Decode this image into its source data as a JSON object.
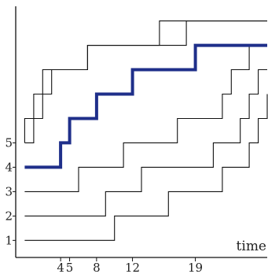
{
  "chart_data": {
    "type": "line",
    "step": true,
    "xlabel": "time",
    "ylabel": "",
    "x_ticks": [
      4,
      5,
      8,
      12,
      19
    ],
    "y_ticks": [
      1,
      2,
      3,
      4,
      5
    ],
    "xlim": [
      -1,
      27
    ],
    "ylim": [
      0.3,
      10.6
    ],
    "grid": false,
    "highlight_color": "#1f2f8a",
    "line_color": "#111111",
    "series": [
      {
        "start": 1,
        "steps": [
          10,
          16,
          22,
          25,
          26,
          27
        ],
        "end_x": 27,
        "highlight": false
      },
      {
        "start": 2,
        "steps": [
          9,
          13,
          21,
          24,
          25,
          26
        ],
        "end_x": 27,
        "highlight": false
      },
      {
        "start": 3,
        "steps": [
          6,
          11,
          17,
          22,
          23,
          25
        ],
        "end_x": 27,
        "highlight": false
      },
      {
        "start": 4,
        "steps": [
          4,
          5,
          8,
          12,
          19
        ],
        "end_x": 27,
        "highlight": true
      },
      {
        "start": 5,
        "steps": [
          0,
          1,
          2,
          7,
          18
        ],
        "end_x": 27,
        "highlight": false
      },
      {
        "start": 5,
        "steps": [
          1,
          2,
          3,
          7,
          15
        ],
        "end_x": 27,
        "highlight": false
      }
    ]
  }
}
